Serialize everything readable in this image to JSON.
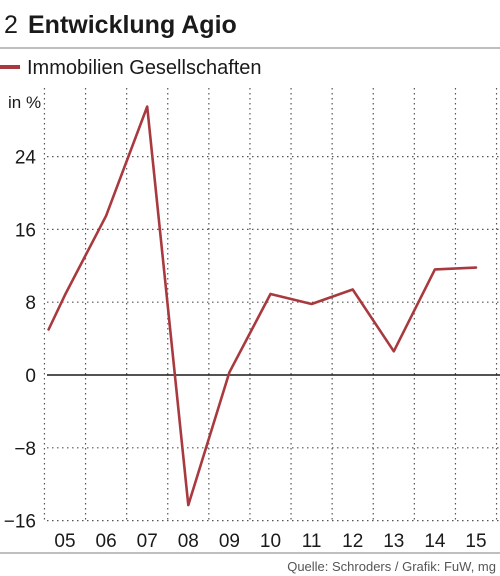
{
  "figure": {
    "number": "2",
    "title": "Entwicklung Agio",
    "legend_label": "Immobilien Gesellschaften",
    "unit_label": "in %",
    "source": "Quelle: Schroders / Grafik: FuW, mg"
  },
  "colors": {
    "series": "#a83a3f",
    "grid": "#555555",
    "axis": "#1a1a1a",
    "rule": "#7f7f7f"
  },
  "chart_data": {
    "type": "line",
    "title": "Entwicklung Agio",
    "ylabel": "in %",
    "xlabel": "",
    "categories": [
      "05",
      "06",
      "07",
      "08",
      "09",
      "10",
      "11",
      "12",
      "13",
      "14",
      "15"
    ],
    "yticks": [
      -16,
      -8,
      0,
      8,
      16,
      24
    ],
    "ylim": [
      -16,
      30
    ],
    "grid": true,
    "legend_position": "top-left",
    "series": [
      {
        "name": "Immobilien Gesellschaften",
        "points": [
          [
            2004.6,
            5.0
          ],
          [
            2005.0,
            8.8
          ],
          [
            2006.0,
            17.5
          ],
          [
            2007.0,
            29.5
          ],
          [
            2008.0,
            -14.3
          ],
          [
            2009.0,
            0.3
          ],
          [
            2010.0,
            8.9
          ],
          [
            2011.0,
            7.8
          ],
          [
            2012.0,
            9.4
          ],
          [
            2013.0,
            2.6
          ],
          [
            2014.0,
            11.6
          ],
          [
            2015.0,
            11.8
          ]
        ]
      }
    ]
  }
}
